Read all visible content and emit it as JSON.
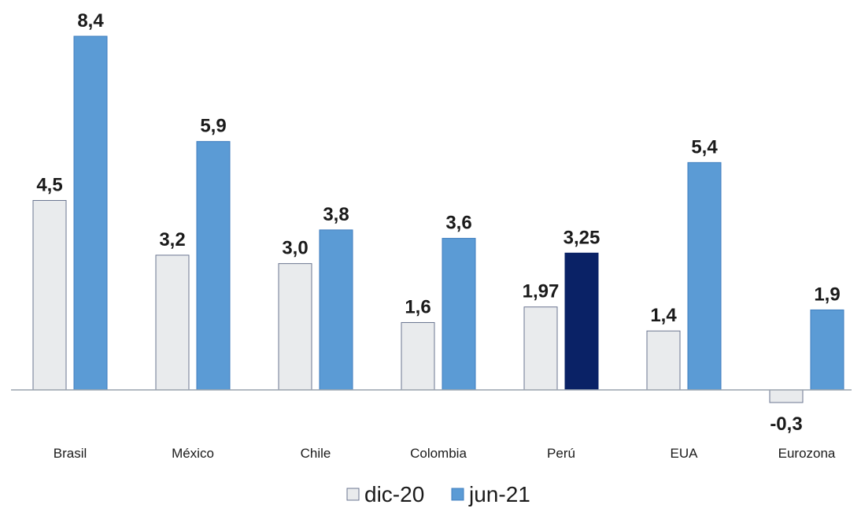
{
  "chart_data": {
    "type": "bar",
    "categories": [
      "Brasil",
      "México",
      "Chile",
      "Colombia",
      "Perú",
      "EUA",
      "Eurozona"
    ],
    "series": [
      {
        "name": "dic-20",
        "values": [
          4.5,
          3.2,
          3.0,
          1.6,
          1.97,
          1.4,
          -0.3
        ],
        "labels": [
          "4,5",
          "3,2",
          "3,0",
          "1,6",
          "1,97",
          "1,4",
          "-0,3"
        ],
        "fill": "#e9ebed",
        "stroke": "#6a7590"
      },
      {
        "name": "jun-21",
        "values": [
          8.4,
          5.9,
          3.8,
          3.6,
          3.25,
          5.4,
          1.9
        ],
        "labels": [
          "8,4",
          "5,9",
          "3,8",
          "3,6",
          "3,25",
          "5,4",
          "1,9"
        ],
        "fill": "#5b9bd5",
        "stroke": "#3f7ebf",
        "highlight": {
          "category": "Perú",
          "fill": "#0a2266"
        }
      }
    ],
    "ylim": [
      -0.3,
      8.4
    ],
    "grid": false,
    "axis_color": "#9aa3ad",
    "legend_position": "bottom"
  }
}
